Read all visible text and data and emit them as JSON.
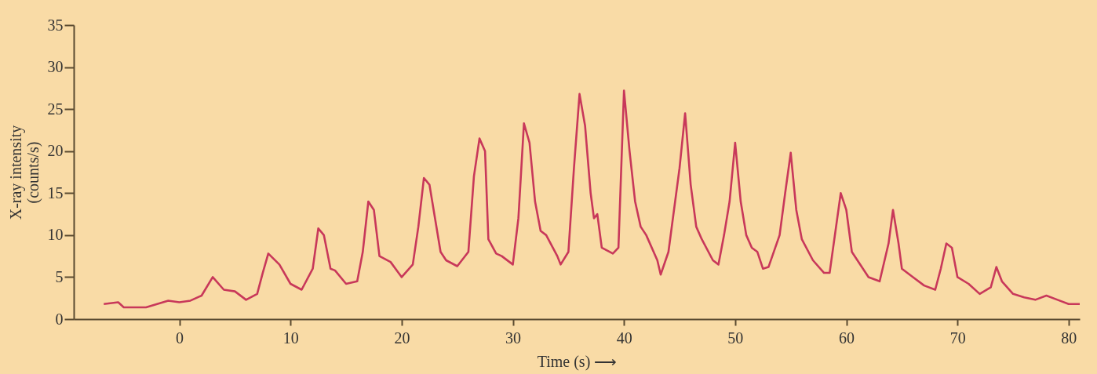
{
  "chart_data": {
    "type": "line",
    "xlabel": "Time (s) ⟶",
    "ylabel": "X-ray intensity\n(counts/s)",
    "xlim": [
      -9.5,
      81
    ],
    "xticks": [
      0,
      10,
      20,
      30,
      40,
      50,
      60,
      70,
      80
    ],
    "ylim": [
      0,
      35
    ],
    "yticks": [
      0,
      5,
      10,
      15,
      20,
      25,
      30,
      35
    ],
    "grid": false,
    "marker": "none",
    "line_style": "solid",
    "series": [
      {
        "color": "#c8385a",
        "x": [
          -6.8,
          -5.5,
          -5,
          -3,
          -1,
          0,
          1,
          2,
          3,
          4,
          5,
          6,
          7,
          7.5,
          8,
          9,
          10,
          11,
          12,
          12.5,
          13,
          13.6,
          14,
          15,
          16,
          16.5,
          17,
          17.5,
          18,
          19,
          20,
          21,
          21.5,
          22,
          22.5,
          23,
          23.5,
          24,
          25,
          26,
          26.5,
          27,
          27.5,
          27.8,
          28.5,
          29,
          30,
          30.5,
          31,
          31.5,
          32,
          32.5,
          33,
          34,
          34.3,
          35,
          35.5,
          36,
          36.5,
          37,
          37.3,
          37.6,
          38,
          39,
          39.5,
          40,
          40.5,
          41,
          41.5,
          42,
          43,
          43.3,
          44,
          45,
          45.5,
          46,
          46.5,
          47,
          48,
          48.5,
          49,
          49.5,
          50,
          50.5,
          51,
          51.5,
          52,
          52.5,
          53,
          54,
          54.5,
          55,
          55.5,
          56,
          57,
          58,
          58.5,
          59.5,
          60,
          60.5,
          61,
          62,
          63,
          63.8,
          64.2,
          64.7,
          65,
          66,
          67,
          68,
          68.5,
          69,
          69.5,
          70,
          71,
          72,
          73,
          73.5,
          74,
          75,
          76,
          77,
          78,
          79,
          80,
          81
        ],
        "values": [
          1.8,
          2.0,
          1.4,
          1.4,
          2.2,
          2.0,
          2.2,
          2.8,
          5.0,
          3.5,
          3.3,
          2.3,
          3.0,
          5.5,
          7.8,
          6.5,
          4.2,
          3.5,
          6,
          10.8,
          10,
          6,
          5.8,
          4.2,
          4.5,
          8,
          14,
          13,
          7.5,
          6.8,
          5,
          6.5,
          11,
          16.8,
          16,
          12,
          8,
          7,
          6.3,
          8,
          17,
          21.5,
          20,
          9.5,
          7.8,
          7.5,
          6.5,
          12,
          23.3,
          21,
          14,
          10.5,
          10,
          7.5,
          6.5,
          8,
          18,
          26.8,
          23,
          15,
          12,
          12.5,
          8.5,
          7.8,
          8.5,
          27.2,
          20,
          14,
          11,
          10,
          7,
          5.3,
          8,
          18,
          24.5,
          16,
          11,
          9.5,
          7,
          6.5,
          10,
          14,
          21,
          14,
          10,
          8.5,
          8,
          6,
          6.2,
          10,
          15,
          19.8,
          13,
          9.5,
          7,
          5.5,
          5.5,
          15,
          13,
          8,
          7,
          5,
          4.5,
          9,
          13,
          9,
          6,
          5,
          4,
          3.5,
          6,
          9,
          8.5,
          5,
          4.2,
          3,
          3.8,
          6.2,
          4.5,
          3,
          2.6,
          2.3,
          2.8,
          2.3,
          1.8,
          1.8
        ]
      }
    ]
  }
}
